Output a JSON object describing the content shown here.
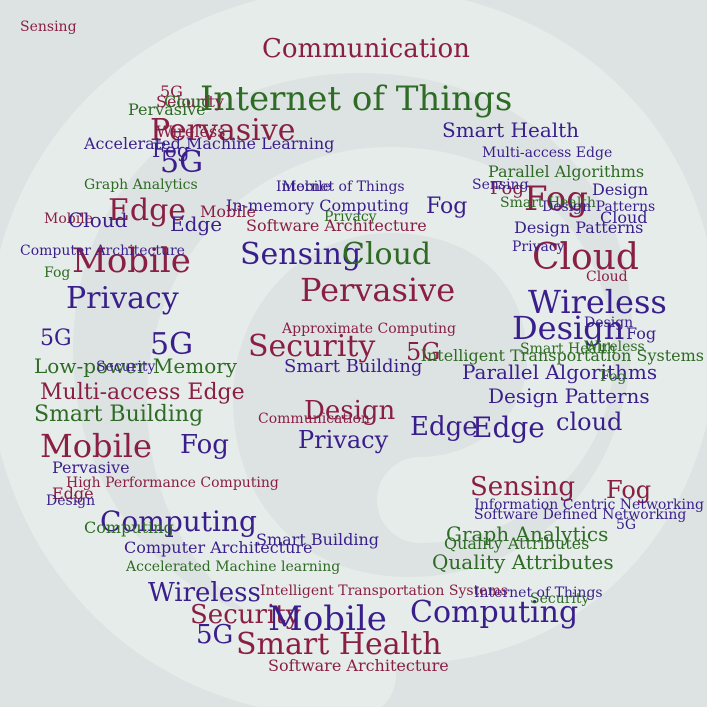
{
  "palette": {
    "background": "#dde3e2",
    "spiral": "#e6ecea",
    "purple": "#3a1e8c",
    "green": "#2e6b24",
    "maroon": "#8a1f44"
  },
  "words": [
    {
      "text": "Internet of Things",
      "c": "green"
    },
    {
      "text": "Communication",
      "c": "maroon"
    },
    {
      "text": "Pervasive",
      "c": "maroon"
    },
    {
      "text": "Smart Health",
      "c": "purple"
    },
    {
      "text": "Multi-access Edge",
      "c": "purple"
    },
    {
      "text": "5G",
      "c": "purple"
    },
    {
      "text": "Edge",
      "c": "maroon"
    },
    {
      "text": "Graph Analytics",
      "c": "green"
    },
    {
      "text": "Mobile",
      "c": "maroon"
    },
    {
      "text": "Privacy",
      "c": "purple"
    },
    {
      "text": "5G",
      "c": "purple"
    },
    {
      "text": "5G",
      "c": "purple"
    },
    {
      "text": "Low-power Memory",
      "c": "green"
    },
    {
      "text": "Multi-access Edge",
      "c": "maroon"
    },
    {
      "text": "Smart Building",
      "c": "green"
    },
    {
      "text": "Mobile",
      "c": "maroon"
    },
    {
      "text": "Fog",
      "c": "purple"
    },
    {
      "text": "Fog",
      "c": "purple"
    },
    {
      "text": "Pervasive",
      "c": "purple"
    },
    {
      "text": "High Performance Computing",
      "c": "maroon"
    },
    {
      "text": "Computing",
      "c": "purple"
    },
    {
      "text": "Computer Architecture",
      "c": "purple"
    },
    {
      "text": "Accelerated Machine learning",
      "c": "green"
    },
    {
      "text": "Wireless",
      "c": "purple"
    },
    {
      "text": "Security",
      "c": "maroon"
    },
    {
      "text": "5G",
      "c": "purple"
    },
    {
      "text": "Smart Health",
      "c": "maroon"
    },
    {
      "text": "Mobile",
      "c": "purple"
    },
    {
      "text": "Computing",
      "c": "purple"
    },
    {
      "text": "Software Architecture",
      "c": "maroon"
    },
    {
      "text": "Intelligent Transportation Systems",
      "c": "maroon"
    },
    {
      "text": "Internet of Things",
      "c": "purple"
    },
    {
      "text": "Sensing",
      "c": "purple"
    },
    {
      "text": "Cloud",
      "c": "green"
    },
    {
      "text": "Pervasive",
      "c": "maroon"
    },
    {
      "text": "Security",
      "c": "maroon"
    },
    {
      "text": "5G",
      "c": "maroon"
    },
    {
      "text": "Smart Building",
      "c": "purple"
    },
    {
      "text": "Design",
      "c": "maroon"
    },
    {
      "text": "Privacy",
      "c": "purple"
    },
    {
      "text": "Software Architecture",
      "c": "maroon"
    },
    {
      "text": "Approximate Computing",
      "c": "maroon"
    },
    {
      "text": "In-memory Computing",
      "c": "purple"
    },
    {
      "text": "Fog",
      "c": "purple"
    },
    {
      "text": "Internet of Things",
      "c": "purple"
    },
    {
      "text": "Fog",
      "c": "maroon"
    },
    {
      "text": "Cloud",
      "c": "maroon"
    },
    {
      "text": "Design",
      "c": "purple"
    },
    {
      "text": "Design Patterns",
      "c": "purple"
    },
    {
      "text": "Wireless",
      "c": "purple"
    },
    {
      "text": "Design",
      "c": "purple"
    },
    {
      "text": "Intelligent Transportation Systems",
      "c": "green"
    },
    {
      "text": "Parallel Algorithms",
      "c": "purple"
    },
    {
      "text": "Design Patterns",
      "c": "purple"
    },
    {
      "text": "Edge",
      "c": "purple"
    },
    {
      "text": "Edge",
      "c": "purple"
    },
    {
      "text": "cloud",
      "c": "purple"
    },
    {
      "text": "Sensing",
      "c": "maroon"
    },
    {
      "text": "Fog",
      "c": "maroon"
    },
    {
      "text": "Graph Analytics",
      "c": "green"
    },
    {
      "text": "Quality Attributes",
      "c": "green"
    },
    {
      "text": "Software Defined Networking",
      "c": "purple"
    },
    {
      "text": "Information Centric Networking",
      "c": "purple"
    },
    {
      "text": "Parallel Algorithms",
      "c": "green"
    },
    {
      "text": "Smart Health",
      "c": "green"
    },
    {
      "text": "Fog",
      "c": "maroon"
    },
    {
      "text": "Design Patterns",
      "c": "purple"
    },
    {
      "text": "Privacy",
      "c": "purple"
    },
    {
      "text": "Cloud",
      "c": "purple"
    },
    {
      "text": "5G",
      "c": "purple"
    },
    {
      "text": "Fog",
      "c": "green"
    },
    {
      "text": "Computer Architecture",
      "c": "purple"
    },
    {
      "text": "Mobile",
      "c": "maroon"
    },
    {
      "text": "Edge",
      "c": "purple"
    },
    {
      "text": "Wireless",
      "c": "green"
    },
    {
      "text": "Cloud",
      "c": "maroon"
    },
    {
      "text": "Accelerated Machine Learning",
      "c": "purple"
    },
    {
      "text": "Sensing",
      "c": "purple"
    },
    {
      "text": "Edge",
      "c": "maroon"
    },
    {
      "text": "Smart Health",
      "c": "green"
    },
    {
      "text": "Security",
      "c": "purple"
    },
    {
      "text": "Smart Building",
      "c": "purple"
    },
    {
      "text": "Cloud",
      "c": "purple"
    },
    {
      "text": "Fog",
      "c": "purple"
    },
    {
      "text": "5G",
      "c": "maroon"
    },
    {
      "text": "Quality Attributes",
      "c": "green"
    },
    {
      "text": "Wireless",
      "c": "maroon"
    },
    {
      "text": "Pervasive",
      "c": "green"
    },
    {
      "text": "Security",
      "c": "maroon"
    },
    {
      "text": "Cloud",
      "c": "green"
    },
    {
      "text": "Fog",
      "c": "green"
    },
    {
      "text": "Mobile",
      "c": "maroon"
    },
    {
      "text": "Design",
      "c": "purple"
    },
    {
      "text": "Mobile",
      "c": "purple"
    },
    {
      "text": "Communication",
      "c": "maroon"
    },
    {
      "text": "Privacy",
      "c": "green"
    },
    {
      "text": "Computing",
      "c": "green"
    },
    {
      "text": "Design",
      "c": "purple"
    },
    {
      "text": "Security",
      "c": "green"
    },
    {
      "text": "Sensing",
      "c": "maroon"
    }
  ]
}
